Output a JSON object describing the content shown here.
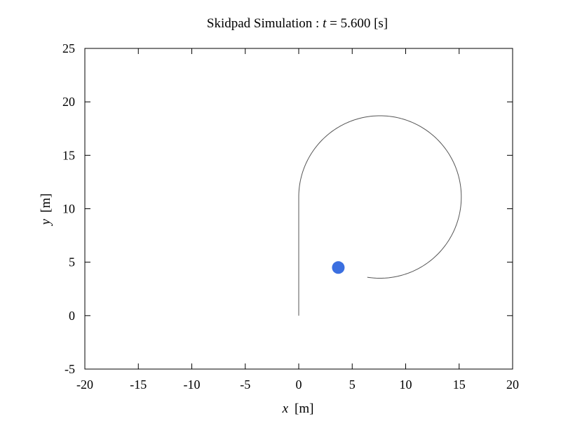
{
  "chart_data": {
    "type": "line",
    "title_prefix": "Skidpad Simulation : ",
    "time_symbol": "t",
    "time_text": " = 5.600 [s]",
    "xlabel_symbol": "x",
    "xlabel_unit": "[m]",
    "ylabel_symbol": "y",
    "ylabel_unit": "[m]",
    "xlim": [
      -20,
      20
    ],
    "ylim": [
      -5,
      25
    ],
    "xticks": [
      "-20",
      "-15",
      "-10",
      "-5",
      "0",
      "5",
      "10",
      "15",
      "20"
    ],
    "yticks": [
      "-5",
      "0",
      "5",
      "10",
      "15",
      "20",
      "25"
    ],
    "grid": false,
    "trajectory": {
      "straight": {
        "x": 0,
        "y_start": 0,
        "y_end": 11.0
      },
      "circle": {
        "center_x": 7.6,
        "center_y": 11.1,
        "radius": 7.6,
        "start_angle_deg": 180,
        "sweep_deg": -279
      }
    },
    "vehicle": {
      "x": 3.7,
      "y": 4.5
    },
    "colors": {
      "path": "#555555",
      "vehicle": "#3b6fe0",
      "axis": "#000000"
    }
  }
}
